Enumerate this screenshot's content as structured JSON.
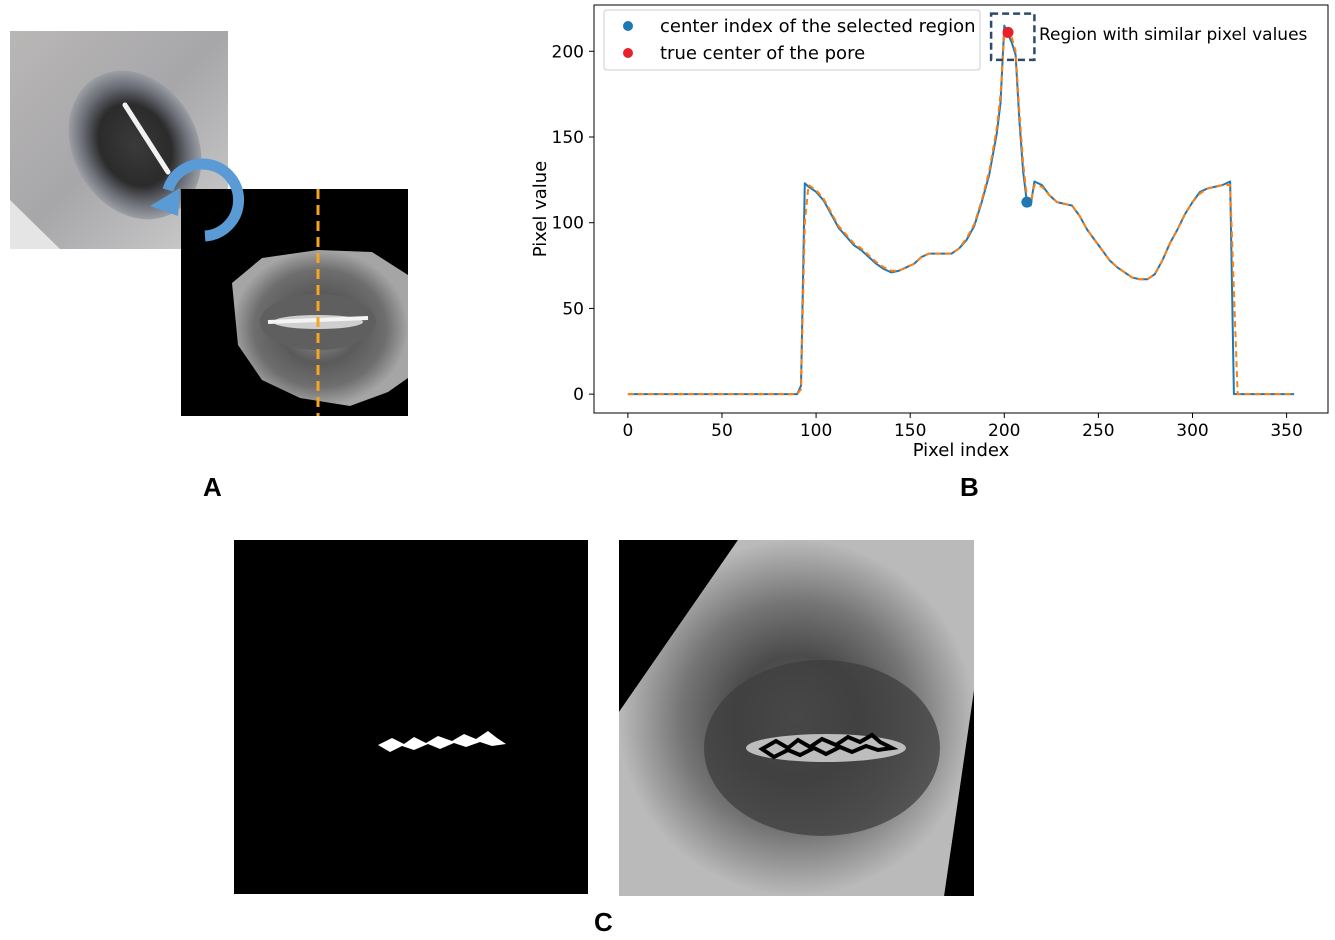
{
  "panel_labels": {
    "a": "A",
    "b": "B",
    "c": "C"
  },
  "panel_a": {
    "rotate_icon": "rotate-counterclockwise-icon",
    "rotate_color": "#5b9bd5",
    "scan_line_color": "#f5a623"
  },
  "chart_data": {
    "type": "line",
    "title": "",
    "xlabel": "Pixel index",
    "ylabel": "Pixel value",
    "xlim": [
      -18,
      372
    ],
    "ylim": [
      -11,
      227
    ],
    "xticks": [
      0,
      50,
      100,
      150,
      200,
      250,
      300,
      350
    ],
    "yticks": [
      0,
      50,
      100,
      150,
      200
    ],
    "grid": false,
    "legend_position": "top-left",
    "x": [
      0,
      90,
      92,
      94,
      96,
      100,
      104,
      108,
      112,
      116,
      120,
      124,
      128,
      132,
      136,
      140,
      144,
      148,
      152,
      156,
      160,
      164,
      168,
      172,
      176,
      180,
      184,
      188,
      192,
      196,
      198,
      200,
      202,
      204,
      206,
      208,
      210,
      212,
      214,
      216,
      220,
      224,
      228,
      232,
      236,
      240,
      244,
      248,
      252,
      256,
      260,
      264,
      268,
      272,
      276,
      280,
      284,
      288,
      292,
      296,
      300,
      304,
      308,
      312,
      316,
      320,
      322,
      324,
      354
    ],
    "series": [
      {
        "name": "",
        "style": "solid",
        "color": "#1f77b4",
        "values": [
          0,
          0,
          5,
          123,
          121,
          118,
          113,
          105,
          97,
          92,
          87,
          84,
          80,
          76,
          73,
          71,
          72,
          74,
          76,
          80,
          82,
          82,
          82,
          82,
          85,
          90,
          98,
          112,
          128,
          152,
          170,
          215,
          210,
          205,
          198,
          160,
          130,
          112,
          110,
          124,
          122,
          116,
          112,
          111,
          110,
          104,
          96,
          90,
          84,
          78,
          74,
          71,
          68,
          67,
          67,
          70,
          78,
          88,
          96,
          105,
          112,
          118,
          120,
          121,
          122,
          124,
          0,
          0,
          0
        ]
      },
      {
        "name": "",
        "style": "dashed",
        "color": "#ff7f0e",
        "values": [
          0,
          0,
          3,
          100,
          122,
          119,
          114,
          106,
          98,
          93,
          88,
          85,
          81,
          77,
          74,
          72,
          72,
          74,
          76,
          80,
          82,
          82,
          82,
          82,
          85,
          91,
          99,
          113,
          130,
          155,
          175,
          210,
          212,
          208,
          200,
          165,
          135,
          115,
          112,
          122,
          121,
          116,
          112,
          111,
          110,
          104,
          96,
          90,
          84,
          78,
          74,
          71,
          68,
          67,
          67,
          70,
          78,
          88,
          96,
          105,
          112,
          117,
          120,
          121,
          122,
          122,
          60,
          0,
          0
        ]
      }
    ],
    "markers": [
      {
        "label": "center index of the selected region",
        "x": 212,
        "y": 112,
        "color": "#1f77b4"
      },
      {
        "label": "true center of the pore",
        "x": 202,
        "y": 211,
        "color": "#e8202a"
      }
    ],
    "annotation": {
      "text": "Region with similar pixel values",
      "box_x": [
        193,
        216
      ],
      "box_y": [
        195,
        222
      ],
      "box_color": "#2e4a6b"
    }
  },
  "panel_c": {
    "mask_color": "#ffffff",
    "contour_color": "#000000"
  }
}
